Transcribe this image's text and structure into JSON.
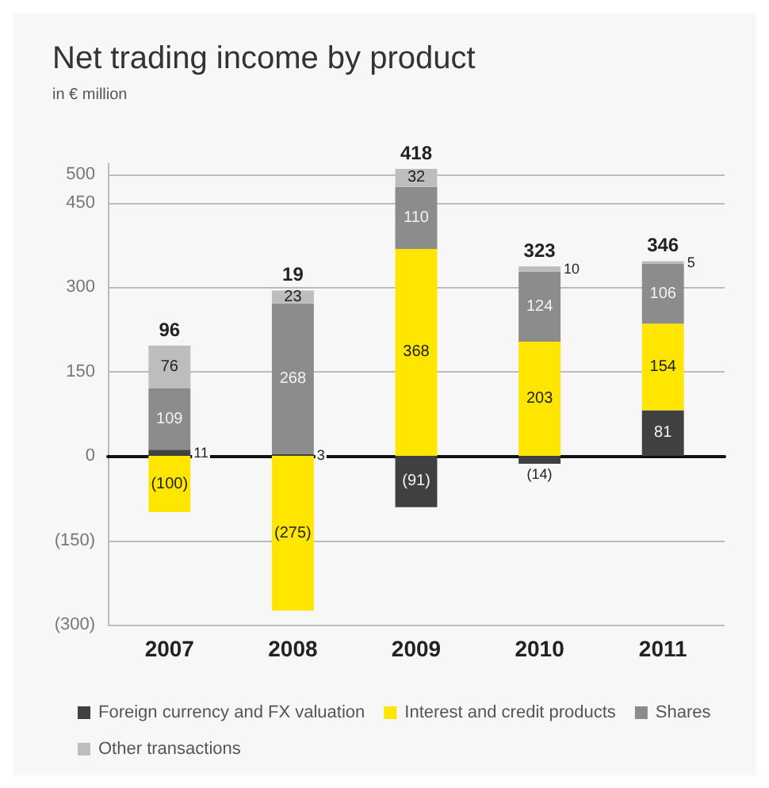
{
  "chart_data": {
    "type": "bar",
    "title": "Net trading income by product",
    "subtitle": "in € million",
    "stacked": true,
    "categories": [
      "2007",
      "2008",
      "2009",
      "2010",
      "2011"
    ],
    "series": [
      {
        "name": "Foreign currency and FX valuation",
        "color": "#404040",
        "values": [
          11,
          3,
          -91,
          -14,
          81
        ],
        "value_labels": [
          "11",
          "3",
          "(91)",
          "(14)",
          "81"
        ]
      },
      {
        "name": "Interest and credit products",
        "color": "#ffe600",
        "values": [
          -100,
          -275,
          368,
          203,
          154
        ],
        "value_labels": [
          "(100)",
          "(275)",
          "368",
          "203",
          "154"
        ]
      },
      {
        "name": "Shares",
        "color": "#8c8c8c",
        "values": [
          109,
          268,
          110,
          124,
          106
        ],
        "value_labels": [
          "109",
          "268",
          "110",
          "124",
          "106"
        ]
      },
      {
        "name": "Other transactions",
        "color": "#bdbdbd",
        "values": [
          76,
          23,
          32,
          10,
          5
        ],
        "value_labels": [
          "76",
          "23",
          "32",
          "10",
          "5"
        ]
      }
    ],
    "totals": [
      "96",
      "19",
      "418",
      "323",
      "346"
    ],
    "ylim": [
      -300,
      520
    ],
    "yticks": [
      {
        "value": -300,
        "label": "(300)"
      },
      {
        "value": -150,
        "label": "(150)"
      },
      0,
      150,
      300,
      450,
      500
    ],
    "grid": "y",
    "legend": "bottom"
  }
}
